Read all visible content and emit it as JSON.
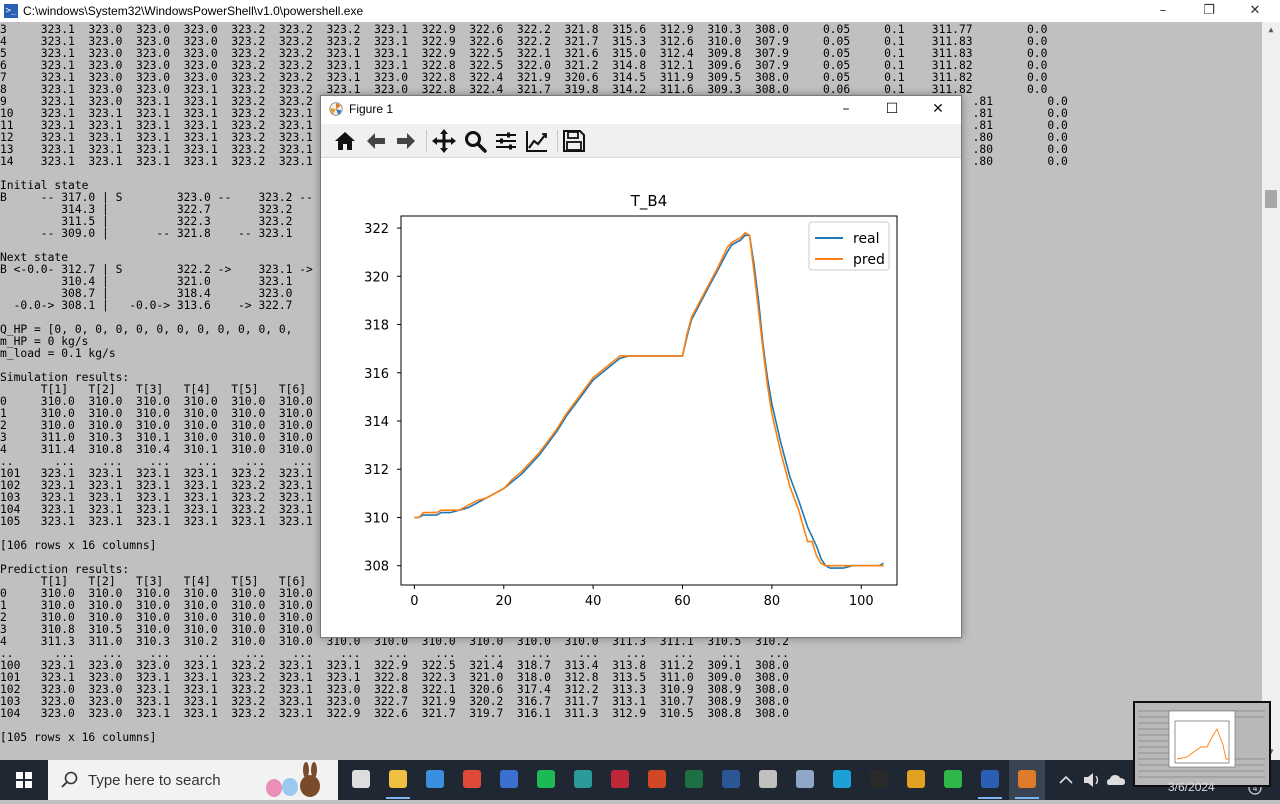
{
  "console": {
    "title": "C:\\windows\\System32\\WindowsPowerShell\\v1.0\\powershell.exe",
    "lines": [
      "3     323.1  323.0  323.0  323.0  323.2  323.2  323.2  323.1  322.9  322.6  322.2  321.8  315.6  312.9  310.3  308.0     0.05     0.1    311.77        0.0",
      "4     323.1  323.0  323.0  323.0  323.2  323.2  323.2  323.1  322.9  322.6  322.2  321.7  315.3  312.6  310.0  307.9     0.05     0.1    311.83        0.0",
      "5     323.1  323.0  323.0  323.0  323.2  323.2  323.1  323.1  322.9  322.5  322.1  321.6  315.0  312.4  309.8  307.9     0.05     0.1    311.83        0.0",
      "6     323.1  323.0  323.0  323.0  323.2  323.2  323.1  323.1  322.8  322.5  322.0  321.2  314.8  312.1  309.6  307.9     0.05     0.1    311.82        0.0",
      "7     323.1  323.0  323.0  323.0  323.2  323.2  323.1  323.0  322.8  322.4  321.9  320.6  314.5  311.9  309.5  308.0     0.05     0.1    311.82        0.0",
      "8     323.1  323.0  323.0  323.1  323.2  323.2  323.1  323.0  322.8  322.4  321.7  319.8  314.2  311.6  309.3  308.0     0.06     0.1    311.82        0.0",
      "9     323.1  323.0  323.1  323.1  323.2  323.2                                                                                                 .81        0.0",
      "10    323.1  323.1  323.1  323.1  323.2  323.1                                                                                                 .81        0.0",
      "11    323.1  323.1  323.1  323.1  323.2  323.1                                                                                                 .81        0.0",
      "12    323.1  323.1  323.1  323.1  323.2  323.1                                                                                                 .80        0.0",
      "13    323.1  323.1  323.1  323.1  323.2  323.1                                                                                                 .80        0.0",
      "14    323.1  323.1  323.1  323.1  323.2  323.1                                                                                                 .80        0.0",
      "",
      "Initial state",
      "B     -- 317.0 | S        323.0 --    323.2 --",
      "         314.3 |          322.7       323.2",
      "         311.5 |          322.3       323.2",
      "      -- 309.0 |       -- 321.8    -- 323.1",
      "",
      "Next state",
      "B <-0.0- 312.7 | S        322.2 ->    323.1 ->",
      "         310.4 |          321.0       323.1",
      "         308.7 |          318.4       323.0",
      "  -0.0-> 308.1 |   -0.0-> 313.6    -> 322.7",
      "",
      "Q_HP = [0, 0, 0, 0, 0, 0, 0, 0, 0, 0, 0, 0,",
      "m_HP = 0 kg/s",
      "m_load = 0.1 kg/s",
      "",
      "Simulation results:",
      "      T[1]   T[2]   T[3]   T[4]   T[5]   T[6]",
      "0     310.0  310.0  310.0  310.0  310.0  310.0",
      "1     310.0  310.0  310.0  310.0  310.0  310.0",
      "2     310.0  310.0  310.0  310.0  310.0  310.0",
      "3     311.0  310.3  310.1  310.0  310.0  310.0",
      "4     311.4  310.8  310.4  310.1  310.0  310.0",
      "..      ...    ...    ...    ...    ...    ...",
      "101   323.1  323.1  323.1  323.1  323.2  323.1",
      "102   323.1  323.1  323.1  323.1  323.2  323.1",
      "103   323.1  323.1  323.1  323.1  323.2  323.1",
      "104   323.1  323.1  323.1  323.1  323.2  323.1",
      "105   323.1  323.1  323.1  323.1  323.1  323.1",
      "",
      "[106 rows x 16 columns]",
      "",
      "Prediction results:",
      "      T[1]   T[2]   T[3]   T[4]   T[5]   T[6]",
      "0     310.0  310.0  310.0  310.0  310.0  310.0",
      "1     310.0  310.0  310.0  310.0  310.0  310.0",
      "2     310.0  310.0  310.0  310.0  310.0  310.0",
      "3     310.8  310.5  310.0  310.0  310.0  310.0",
      "4     311.3  311.0  310.3  310.2  310.0  310.0  310.0  310.0  310.0  310.0  310.0  310.0  311.3  311.1  310.5  310.2",
      "..      ...    ...    ...    ...    ...    ...    ...    ...    ...    ...    ...    ...    ...    ...    ...    ...",
      "100   323.1  323.0  323.0  323.1  323.2  323.1  323.1  322.9  322.5  321.4  318.7  313.4  313.8  311.2  309.1  308.0",
      "101   323.1  323.0  323.1  323.1  323.2  323.1  323.1  322.8  322.3  321.0  318.0  312.8  313.5  311.0  309.0  308.0",
      "102   323.0  323.0  323.1  323.1  323.2  323.1  323.0  322.8  322.1  320.6  317.4  312.2  313.3  310.9  308.9  308.0",
      "103   323.0  323.0  323.1  323.1  323.2  323.1  323.0  322.7  321.9  320.2  316.7  311.7  313.1  310.7  308.9  308.0",
      "104   323.0  323.0  323.1  323.1  323.2  323.1  322.9  322.6  321.7  319.7  316.1  311.3  312.9  310.5  308.8  308.0",
      "",
      "[105 rows x 16 columns]"
    ]
  },
  "figure": {
    "title": "Figure 1",
    "toolbar": [
      "home-icon",
      "back-icon",
      "forward-icon",
      "pan-icon",
      "zoom-icon",
      "configure-subplots-icon",
      "edit-axis-icon",
      "save-icon"
    ]
  },
  "chart_data": {
    "type": "line",
    "title": "T_B4",
    "xlabel": "",
    "ylabel": "",
    "xlim": [
      -3,
      108
    ],
    "ylim": [
      307.2,
      322.5
    ],
    "xticks": [
      0,
      20,
      40,
      60,
      80,
      100
    ],
    "yticks": [
      308,
      310,
      312,
      314,
      316,
      318,
      320,
      322
    ],
    "legend": "top-right",
    "series": [
      {
        "name": "real",
        "color": "#1f77b4",
        "x": [
          0,
          1,
          2,
          3,
          4,
          5,
          6,
          8,
          10,
          12,
          14,
          16,
          18,
          20,
          22,
          24,
          26,
          28,
          30,
          32,
          34,
          36,
          38,
          40,
          42,
          44,
          46,
          48,
          50,
          55,
          60,
          61,
          62,
          64,
          66,
          68,
          70,
          71,
          72,
          73,
          74,
          75,
          76,
          77,
          78,
          79,
          80,
          82,
          84,
          86,
          88,
          90,
          91,
          92,
          93,
          94,
          95,
          96,
          98,
          100,
          102,
          104,
          105
        ],
        "y": [
          310.0,
          310.0,
          310.1,
          310.1,
          310.1,
          310.1,
          310.2,
          310.2,
          310.3,
          310.4,
          310.6,
          310.8,
          311.0,
          311.2,
          311.5,
          311.8,
          312.2,
          312.6,
          313.1,
          313.6,
          314.2,
          314.7,
          315.2,
          315.7,
          316.0,
          316.3,
          316.6,
          316.7,
          316.7,
          316.7,
          316.7,
          317.5,
          318.2,
          318.9,
          319.6,
          320.3,
          321.0,
          321.3,
          321.4,
          321.5,
          321.7,
          321.7,
          320.5,
          319.0,
          317.2,
          315.8,
          314.7,
          313.1,
          311.7,
          310.7,
          309.6,
          308.8,
          308.3,
          308.0,
          307.9,
          307.9,
          307.9,
          307.9,
          308.0,
          308.0,
          308.0,
          308.0,
          308.1
        ]
      },
      {
        "name": "pred",
        "color": "#ff7f0e",
        "x": [
          0,
          1,
          2,
          3,
          4,
          5,
          6,
          8,
          10,
          12,
          14,
          16,
          18,
          20,
          22,
          24,
          26,
          28,
          30,
          32,
          34,
          36,
          38,
          40,
          42,
          44,
          46,
          48,
          50,
          55,
          60,
          61,
          62,
          64,
          66,
          68,
          70,
          71,
          72,
          73,
          74,
          75,
          76,
          77,
          78,
          79,
          80,
          82,
          84,
          86,
          88,
          89,
          90,
          91,
          92,
          93,
          94,
          95,
          96,
          98,
          100,
          102,
          104,
          105
        ],
        "y": [
          310.0,
          310.0,
          310.2,
          310.2,
          310.2,
          310.2,
          310.3,
          310.3,
          310.3,
          310.5,
          310.7,
          310.8,
          311.0,
          311.2,
          311.6,
          311.9,
          312.3,
          312.7,
          313.2,
          313.7,
          314.3,
          314.8,
          315.3,
          315.8,
          316.1,
          316.4,
          316.7,
          316.7,
          316.7,
          316.7,
          316.7,
          317.6,
          318.3,
          319.0,
          319.7,
          320.4,
          321.2,
          321.4,
          321.5,
          321.6,
          321.8,
          321.7,
          320.2,
          318.6,
          317.0,
          315.5,
          314.3,
          312.7,
          311.3,
          310.3,
          309.0,
          309.0,
          308.4,
          308.1,
          308.0,
          308.0,
          308.0,
          308.0,
          308.0,
          308.0,
          308.0,
          308.0,
          308.0,
          308.0
        ]
      }
    ]
  },
  "taskbar": {
    "search_placeholder": "Type here to search",
    "date": "3/6/2024",
    "apps": [
      "task-view-icon",
      "file-explorer-icon",
      "onedrive-icon",
      "chrome-icon",
      "store-icon",
      "spotify-icon",
      "app-icon",
      "mendeley-icon",
      "powerpoint-icon",
      "excel-icon",
      "word-icon",
      "paint-icon",
      "app-icon-2",
      "edge-icon",
      "terminal-icon",
      "settings-icon",
      "app-green-icon",
      "powershell-icon",
      "python-figure-icon"
    ]
  }
}
